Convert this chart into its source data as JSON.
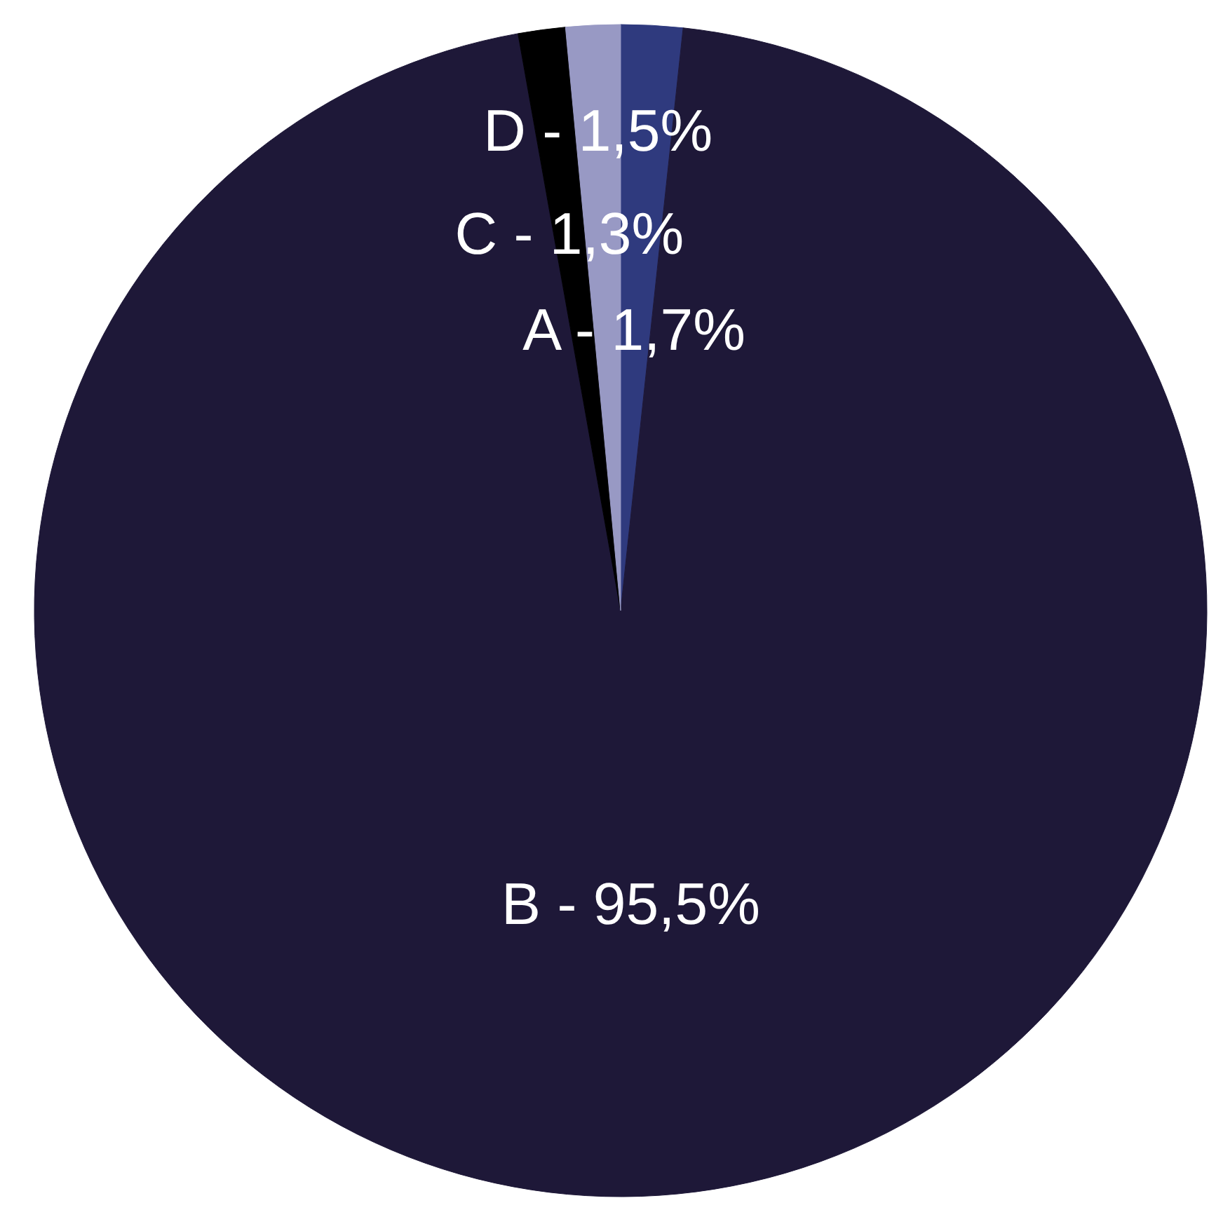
{
  "chart_data": {
    "type": "pie",
    "categories": [
      "A",
      "B",
      "C",
      "D"
    ],
    "values": [
      1.7,
      95.5,
      1.3,
      1.5
    ],
    "colors": [
      "#2f3a7e",
      "#1e1838",
      "#000000",
      "#9899c4"
    ],
    "value_labels": [
      "1,7%",
      "95,5%",
      "1,3%",
      "1,5%"
    ]
  }
}
